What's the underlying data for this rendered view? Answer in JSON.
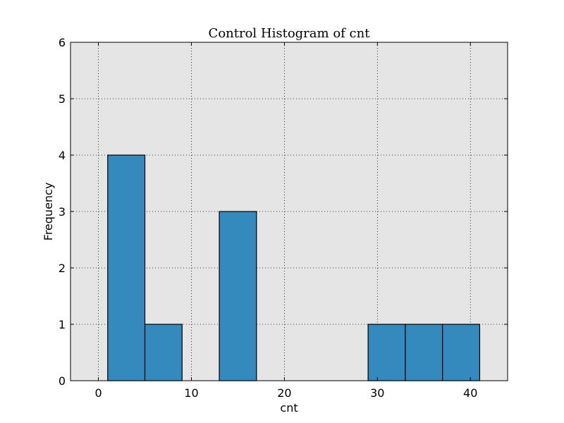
{
  "chart_data": {
    "type": "bar",
    "title": "Control Histogram of cnt",
    "xlabel": "cnt",
    "ylabel": "Frequency",
    "xlim": [
      -3,
      44
    ],
    "ylim": [
      0,
      6
    ],
    "xticks": [
      0,
      10,
      20,
      30,
      40
    ],
    "yticks": [
      0,
      1,
      2,
      3,
      4,
      5,
      6
    ],
    "grid": true,
    "bins": [
      {
        "start": 1,
        "end": 5,
        "value": 4
      },
      {
        "start": 5,
        "end": 9,
        "value": 1
      },
      {
        "start": 9,
        "end": 13,
        "value": 0
      },
      {
        "start": 13,
        "end": 17,
        "value": 3
      },
      {
        "start": 17,
        "end": 21,
        "value": 0
      },
      {
        "start": 21,
        "end": 25,
        "value": 0
      },
      {
        "start": 25,
        "end": 29,
        "value": 0
      },
      {
        "start": 29,
        "end": 33,
        "value": 1
      },
      {
        "start": 33,
        "end": 37,
        "value": 1
      },
      {
        "start": 37,
        "end": 41,
        "value": 1
      }
    ],
    "colors": {
      "bar": "#348ABD",
      "plot_bg": "#E5E5E5",
      "edge": "#000000"
    }
  }
}
